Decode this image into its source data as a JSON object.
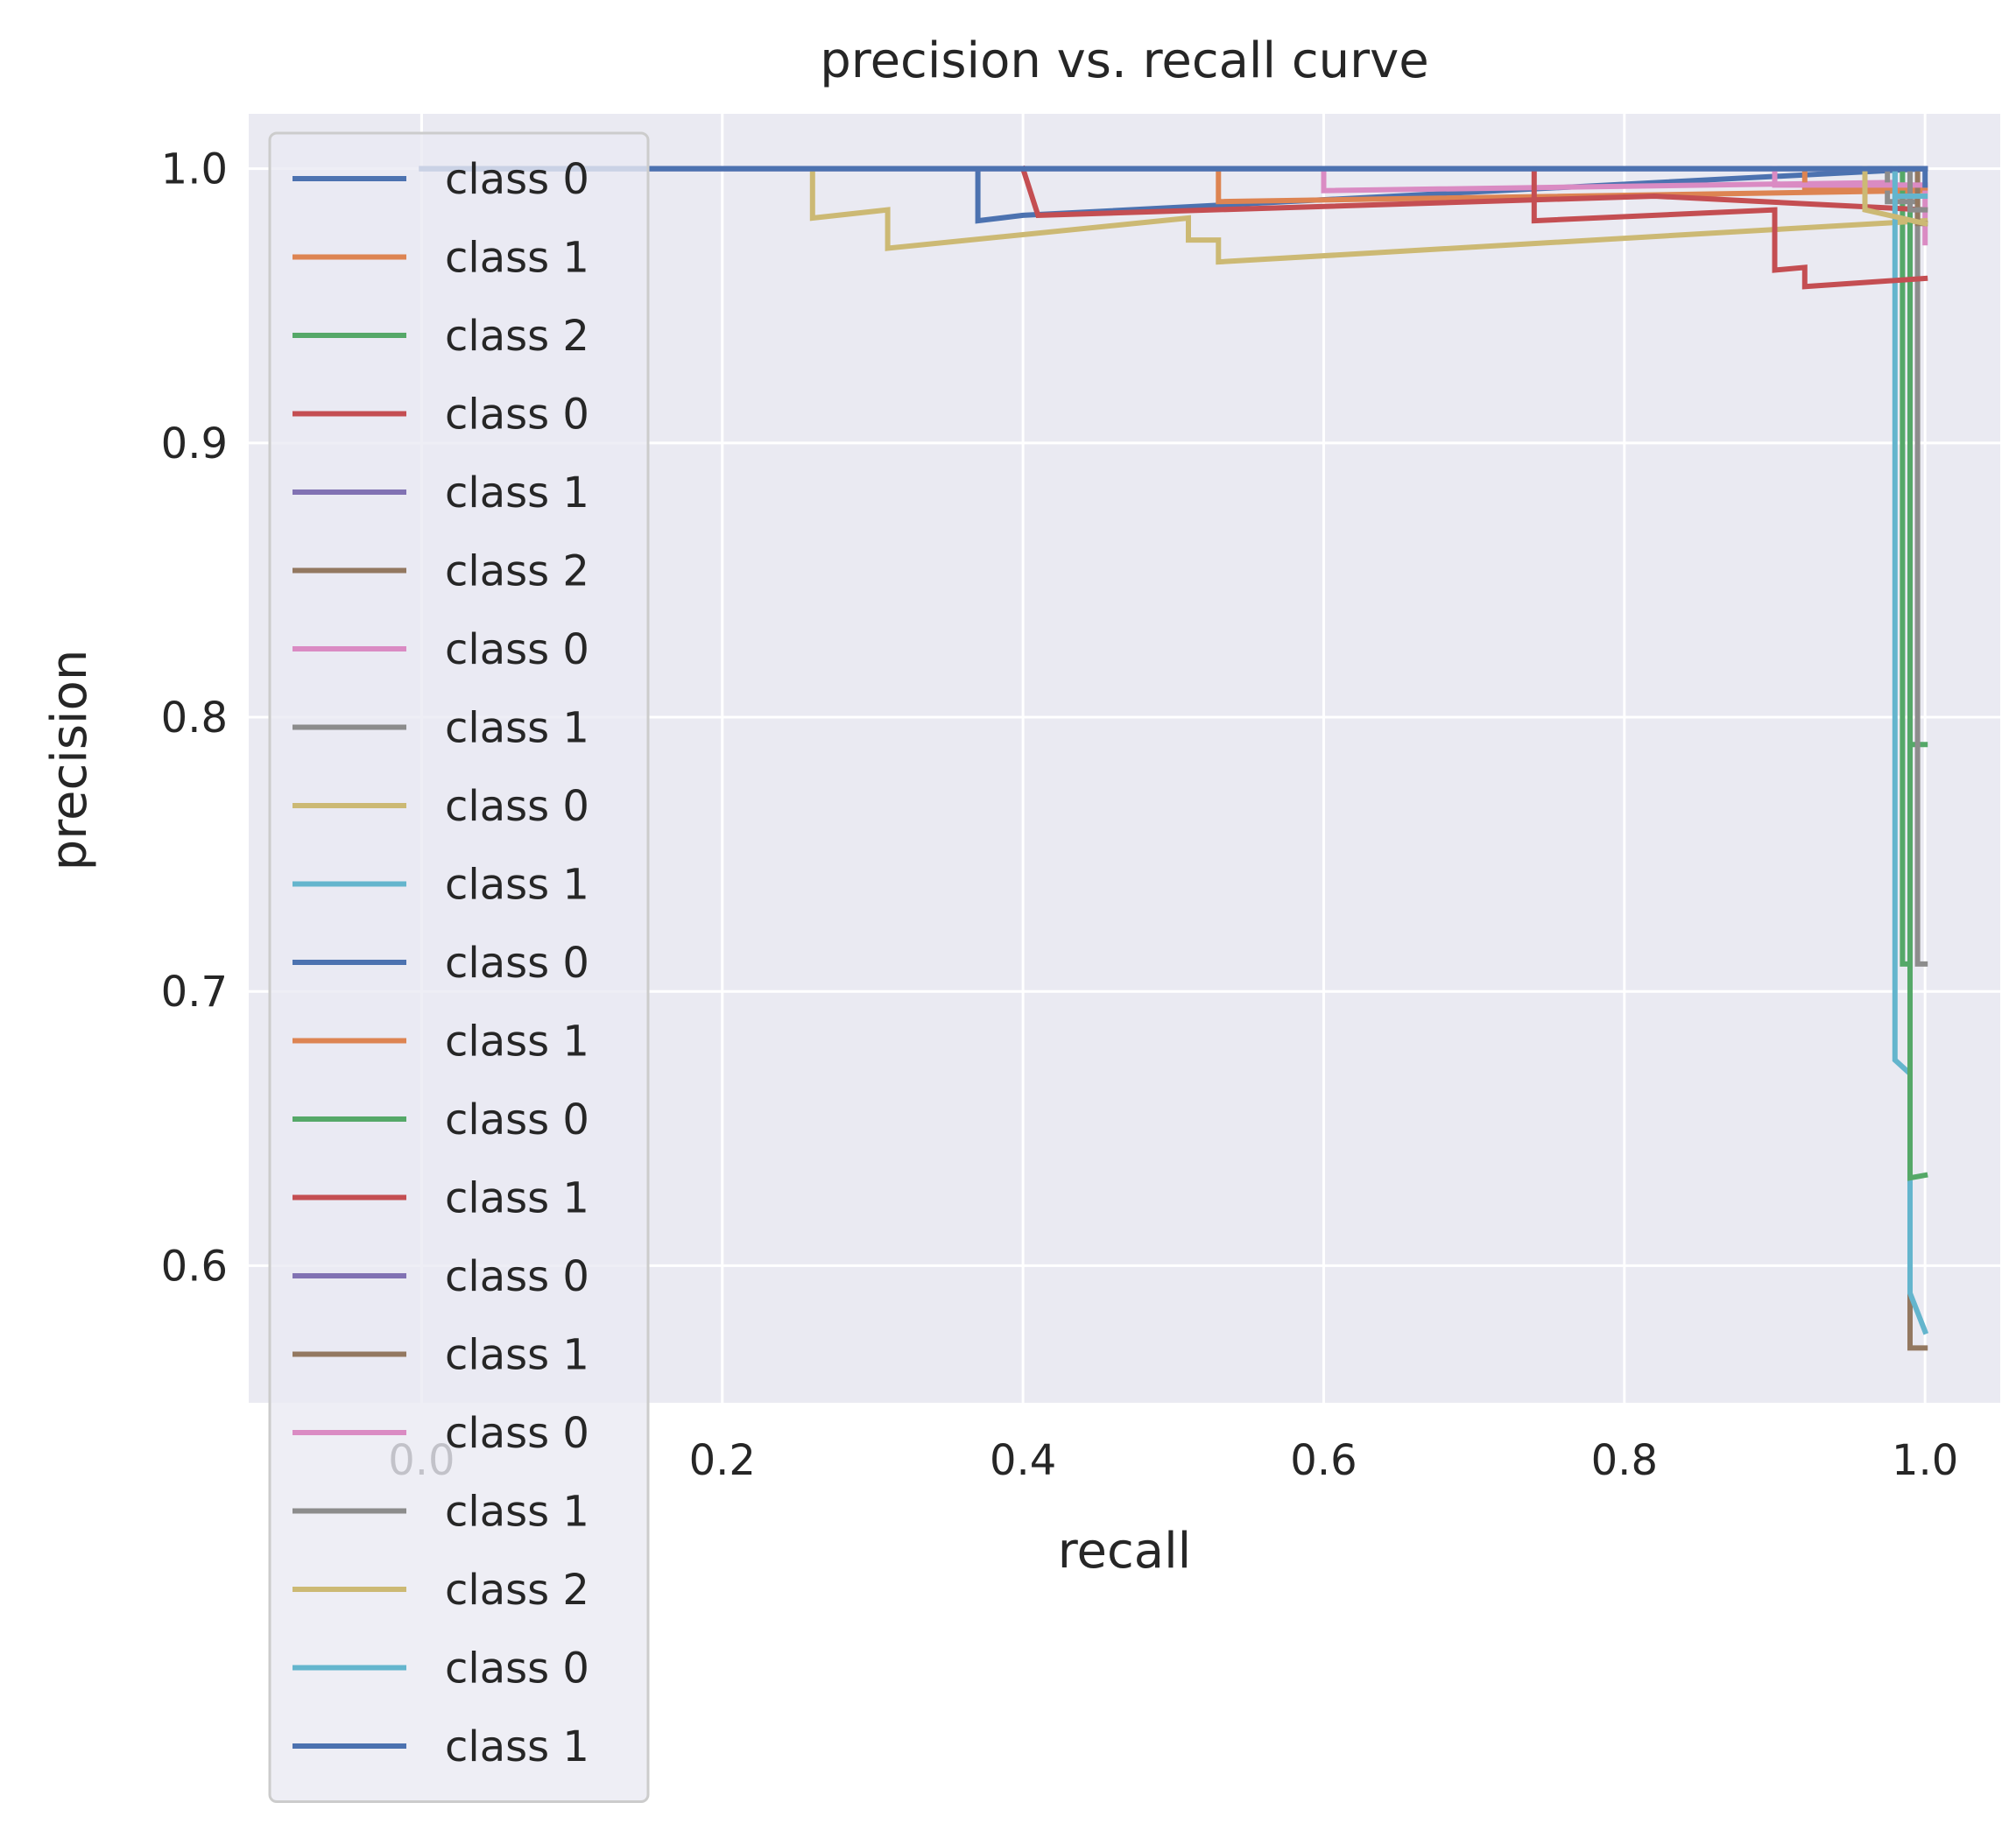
{
  "chart_data": {
    "type": "line",
    "title": "precision vs. recall curve",
    "xlabel": "recall",
    "ylabel": "precision",
    "xlim": [
      -0.115,
      1.05
    ],
    "ylim": [
      0.55,
      1.02
    ],
    "xticks": [
      "0.0",
      "0.2",
      "0.4",
      "0.6",
      "0.8",
      "1.0"
    ],
    "xtick_values": [
      0.0,
      0.2,
      0.4,
      0.6,
      0.8,
      1.0
    ],
    "yticks": [
      "0.6",
      "0.7",
      "0.8",
      "0.9",
      "1.0"
    ],
    "ytick_values": [
      0.6,
      0.7,
      0.8,
      0.9,
      1.0
    ],
    "grid": true,
    "background": "#eaeaf2",
    "legend_position": "left (overflowing below the plot area)",
    "series": [
      {
        "name": "class 0",
        "color": "#4c72b0",
        "x": [
          0.37,
          0.37,
          0.4,
          0.4,
          1.0
        ],
        "y": [
          1.0,
          0.981,
          0.983,
          0.983,
          1.0
        ]
      },
      {
        "name": "class 1",
        "color": "#dd8452",
        "x": [
          0.53,
          0.53,
          1.0
        ],
        "y": [
          1.0,
          0.988,
          0.992
        ]
      },
      {
        "name": "class 2",
        "color": "#55a868",
        "x": [
          0.985,
          0.985,
          0.99,
          0.99,
          1.0
        ],
        "y": [
          1.0,
          0.71,
          0.71,
          0.79,
          0.79
        ]
      },
      {
        "name": "class 0",
        "color": "#c44e52",
        "x": [
          0.4,
          0.41,
          0.82,
          0.82,
          1.0
        ],
        "y": [
          1.0,
          0.983,
          0.99,
          0.99,
          0.985
        ]
      },
      {
        "name": "class 1",
        "color": "#8172b3",
        "x": [
          0.0,
          1.0
        ],
        "y": [
          1.0,
          1.0
        ]
      },
      {
        "name": "class 2",
        "color": "#937860",
        "x": [
          0.99,
          0.99,
          1.0
        ],
        "y": [
          1.0,
          0.57,
          0.57
        ]
      },
      {
        "name": "class 0",
        "color": "#da8bc3",
        "x": [
          0.6,
          0.6,
          0.98,
          0.98,
          1.0,
          1.0
        ],
        "y": [
          1.0,
          0.992,
          0.995,
          0.994,
          0.994,
          0.973
        ]
      },
      {
        "name": "class 1",
        "color": "#8c8c8c",
        "x": [
          0.975,
          0.975,
          0.995,
          0.995,
          1.0
        ],
        "y": [
          1.0,
          0.988,
          0.988,
          0.71,
          0.71
        ]
      },
      {
        "name": "class 0",
        "color": "#ccb974",
        "x": [
          0.26,
          0.26,
          0.31,
          0.31,
          0.51,
          0.51,
          0.53,
          0.53,
          1.0
        ],
        "y": [
          1.0,
          0.982,
          0.985,
          0.971,
          0.982,
          0.974,
          0.974,
          0.966,
          0.981
        ]
      },
      {
        "name": "class 1",
        "color": "#64b5cd",
        "x": [
          0.98,
          0.98,
          0.99,
          0.99,
          1.0
        ],
        "y": [
          1.0,
          0.675,
          0.67,
          0.59,
          0.576
        ]
      },
      {
        "name": "class 0",
        "color": "#4c72b0",
        "x": [
          0.0,
          1.0
        ],
        "y": [
          1.0,
          1.0
        ]
      },
      {
        "name": "class 1",
        "color": "#dd8452",
        "x": [
          0.92,
          0.92,
          1.0
        ],
        "y": [
          1.0,
          0.993,
          0.993
        ]
      },
      {
        "name": "class 0",
        "color": "#55a868",
        "x": [
          0.99,
          0.99,
          1.0
        ],
        "y": [
          1.0,
          0.632,
          0.633
        ]
      },
      {
        "name": "class 1",
        "color": "#c44e52",
        "x": [
          0.74,
          0.74,
          0.9,
          0.9,
          0.92,
          0.92,
          1.0
        ],
        "y": [
          1.0,
          0.981,
          0.985,
          0.963,
          0.964,
          0.957,
          0.96
        ]
      },
      {
        "name": "class 0",
        "color": "#8172b3",
        "x": [
          0.0,
          1.0
        ],
        "y": [
          1.0,
          1.0
        ]
      },
      {
        "name": "class 1",
        "color": "#937860",
        "x": [
          0.995,
          0.995,
          1.0
        ],
        "y": [
          1.0,
          0.98,
          0.98
        ]
      },
      {
        "name": "class 0",
        "color": "#da8bc3",
        "x": [
          0.9,
          0.9,
          1.0
        ],
        "y": [
          1.0,
          0.994,
          0.994
        ]
      },
      {
        "name": "class 1",
        "color": "#8c8c8c",
        "x": [
          0.99,
          0.99,
          1.0
        ],
        "y": [
          1.0,
          0.985,
          0.985
        ]
      },
      {
        "name": "class 2",
        "color": "#ccb974",
        "x": [
          0.96,
          0.96,
          1.0
        ],
        "y": [
          1.0,
          0.985,
          0.98
        ]
      },
      {
        "name": "class 0",
        "color": "#64b5cd",
        "x": [
          0.98,
          0.98,
          1.0
        ],
        "y": [
          1.0,
          0.99,
          0.99
        ]
      },
      {
        "name": "class 1",
        "color": "#4c72b0",
        "x": [
          0.0,
          1.0,
          1.0
        ],
        "y": [
          1.0,
          1.0,
          0.994
        ]
      }
    ]
  }
}
